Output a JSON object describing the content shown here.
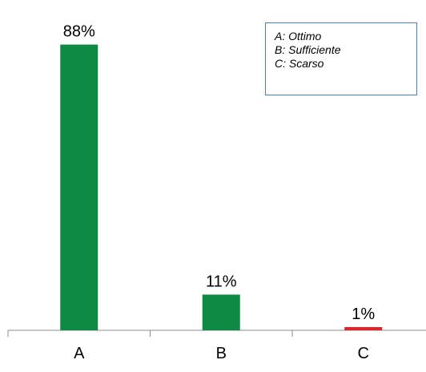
{
  "chart_data": {
    "type": "bar",
    "categories": [
      "A",
      "B",
      "C"
    ],
    "values": [
      88,
      11,
      1
    ],
    "data_labels": [
      "88%",
      "11%",
      "1%"
    ],
    "bar_colors": [
      "#0e8a45",
      "#0e8a45",
      "#d9262b"
    ],
    "ylim": [
      0,
      100
    ],
    "grid": false,
    "legend_placement": "top-right",
    "legend_lines": [
      "A: Ottimo",
      "B: Sufficiente",
      "C: Scarso"
    ],
    "axis_color": "#8c8c8c",
    "legend_border_color": "#4a7ebb"
  }
}
